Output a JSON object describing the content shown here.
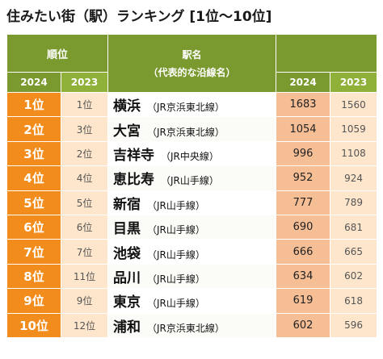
{
  "title": "住みたい街（駅）ランキング [1位～10位]",
  "header": {
    "rank": "順位",
    "station_line1": "駅名",
    "station_line2": "（代表的な沿線名）",
    "y2024": "2024",
    "y2023": "2023"
  },
  "rows": [
    {
      "rank2024": "1位",
      "rank2023": "1位",
      "station": "横浜",
      "line": "（JR京浜東北線）",
      "pts2024": "1683",
      "pts2023": "1560"
    },
    {
      "rank2024": "2位",
      "rank2023": "3位",
      "station": "大宮",
      "line": "（JR京浜東北線）",
      "pts2024": "1054",
      "pts2023": "1059"
    },
    {
      "rank2024": "3位",
      "rank2023": "2位",
      "station": "吉祥寺",
      "line": "（JR中央線）",
      "pts2024": "996",
      "pts2023": "1108"
    },
    {
      "rank2024": "4位",
      "rank2023": "4位",
      "station": "恵比寿",
      "line": "（JR山手線）",
      "pts2024": "952",
      "pts2023": "924"
    },
    {
      "rank2024": "5位",
      "rank2023": "5位",
      "station": "新宿",
      "line": "（JR山手線）",
      "pts2024": "777",
      "pts2023": "789"
    },
    {
      "rank2024": "6位",
      "rank2023": "6位",
      "station": "目黒",
      "line": "（JR山手線）",
      "pts2024": "690",
      "pts2023": "681"
    },
    {
      "rank2024": "7位",
      "rank2023": "7位",
      "station": "池袋",
      "line": "（JR山手線）",
      "pts2024": "666",
      "pts2023": "665"
    },
    {
      "rank2024": "8位",
      "rank2023": "11位",
      "station": "品川",
      "line": "（JR山手線）",
      "pts2024": "634",
      "pts2023": "602"
    },
    {
      "rank2024": "9位",
      "rank2023": "9位",
      "station": "東京",
      "line": "（JR山手線）",
      "pts2024": "619",
      "pts2023": "618"
    },
    {
      "rank2024": "10位",
      "rank2023": "12位",
      "station": "浦和",
      "line": "（JR京浜東北線）",
      "pts2024": "602",
      "pts2023": "596"
    }
  ]
}
